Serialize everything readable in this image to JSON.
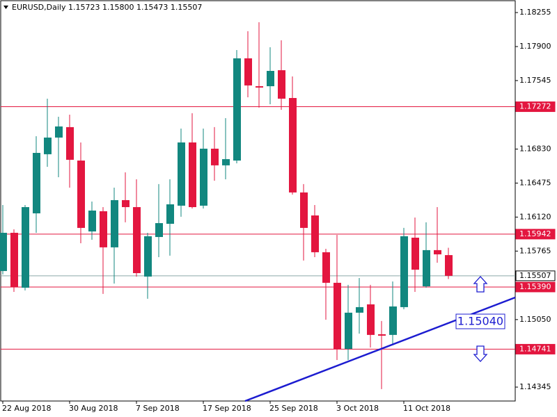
{
  "chart_data": {
    "type": "candlestick",
    "title": "EURUSD,Daily  1.15723 1.15800 1.15473 1.15507",
    "categories": [
      "22 Aug 2018",
      null,
      null,
      null,
      null,
      null,
      "30 Aug 2018",
      null,
      null,
      null,
      null,
      null,
      "7 Sep 2018",
      null,
      null,
      null,
      null,
      null,
      "17 Sep 2018",
      null,
      null,
      null,
      null,
      null,
      "25 Sep 2018",
      null,
      null,
      null,
      null,
      null,
      "3 Oct 2018",
      null,
      null,
      null,
      null,
      null,
      "11 Oct 2018",
      null,
      null,
      null,
      null
    ],
    "open": [
      1.15557,
      1.15956,
      1.15383,
      1.16159,
      1.16776,
      1.1695,
      1.17059,
      1.1671,
      1.1597,
      1.16181,
      1.15804,
      1.16297,
      1.16224,
      1.15499,
      1.15912,
      1.1605,
      1.16239,
      1.16899,
      1.16239,
      1.16834,
      1.1666,
      1.1671,
      1.17777,
      1.17486,
      1.17486,
      1.17653,
      1.17363,
      1.16377,
      1.16137,
      1.15753,
      1.15434,
      1.14744,
      1.15122,
      1.15209,
      1.14897,
      1.1489,
      1.1518,
      1.15905,
      1.15397,
      1.15775,
      1.15723
    ],
    "high": [
      1.16246,
      1.15992,
      1.16246,
      1.16964,
      1.17356,
      1.17167,
      1.17189,
      1.16899,
      1.16282,
      1.16224,
      1.16427,
      1.16587,
      1.16514,
      1.15956,
      1.16464,
      1.16514,
      1.17044,
      1.17204,
      1.17044,
      1.17059,
      1.17153,
      1.17864,
      1.1806,
      1.18154,
      1.17893,
      1.17965,
      1.17588,
      1.16464,
      1.16246,
      1.15789,
      1.15934,
      1.15412,
      1.15484,
      1.15412,
      1.15035,
      1.15448,
      1.16007,
      1.16115,
      1.16065,
      1.16224,
      1.158
    ],
    "low": [
      1.15521,
      1.15339,
      1.15354,
      1.15956,
      1.16645,
      1.16536,
      1.16427,
      1.15847,
      1.15883,
      1.15318,
      1.15426,
      1.16065,
      1.15499,
      1.15267,
      1.15702,
      1.15717,
      1.16123,
      1.1621,
      1.1621,
      1.165,
      1.16514,
      1.16681,
      1.1737,
      1.17262,
      1.17298,
      1.1724,
      1.16355,
      1.15666,
      1.15702,
      1.15049,
      1.14628,
      1.14628,
      1.14904,
      1.14759,
      1.14324,
      1.14781,
      1.15158,
      1.15339,
      1.15383,
      1.15644,
      1.15473
    ],
    "close": [
      1.15956,
      1.1539,
      1.16224,
      1.1679,
      1.1695,
      1.17066,
      1.16718,
      1.16007,
      1.16188,
      1.15804,
      1.16297,
      1.16224,
      1.15535,
      1.1592,
      1.16057,
      1.16253,
      1.16899,
      1.16224,
      1.16834,
      1.1666,
      1.16725,
      1.17777,
      1.17494,
      1.17472,
      1.17646,
      1.17356,
      1.16377,
      1.16007,
      1.15753,
      1.15434,
      1.14744,
      1.15122,
      1.1518,
      1.1489,
      1.14882,
      1.15187,
      1.1592,
      1.15571,
      1.15775,
      1.15731,
      1.15507
    ],
    "up_color": "#12877f",
    "down_color": "#e3163f",
    "ylim": [
      1.142,
      1.18386
    ],
    "yticks": [
      {
        "value": 1.18255,
        "label": "1.18255"
      },
      {
        "value": 1.179,
        "label": "1.17900"
      },
      {
        "value": 1.17545,
        "label": "1.17545"
      },
      {
        "value": 1.1683,
        "label": "1.16830"
      },
      {
        "value": 1.16475,
        "label": "1.16475"
      },
      {
        "value": 1.1612,
        "label": "1.16120"
      },
      {
        "value": 1.15765,
        "label": "1.15765"
      },
      {
        "value": 1.1505,
        "label": "1.15050"
      },
      {
        "value": 1.14345,
        "label": "1.14345"
      }
    ],
    "levels": [
      {
        "value": 1.17272,
        "label": "1.17272",
        "color": "#e3163f"
      },
      {
        "value": 1.15942,
        "label": "1.15942",
        "color": "#e3163f"
      },
      {
        "value": 1.15507,
        "label": "1.15507",
        "color": "#8aa6a6"
      },
      {
        "value": 1.1539,
        "label": "1.15390",
        "color": "#e3163f"
      },
      {
        "value": 1.14741,
        "label": "1.14741",
        "color": "#e3163f"
      }
    ],
    "trendline": {
      "x": [
        21.75,
        46
      ],
      "y": [
        1.142,
        1.15281
      ],
      "color": "#1c1cd0",
      "label": "1.15040"
    }
  }
}
